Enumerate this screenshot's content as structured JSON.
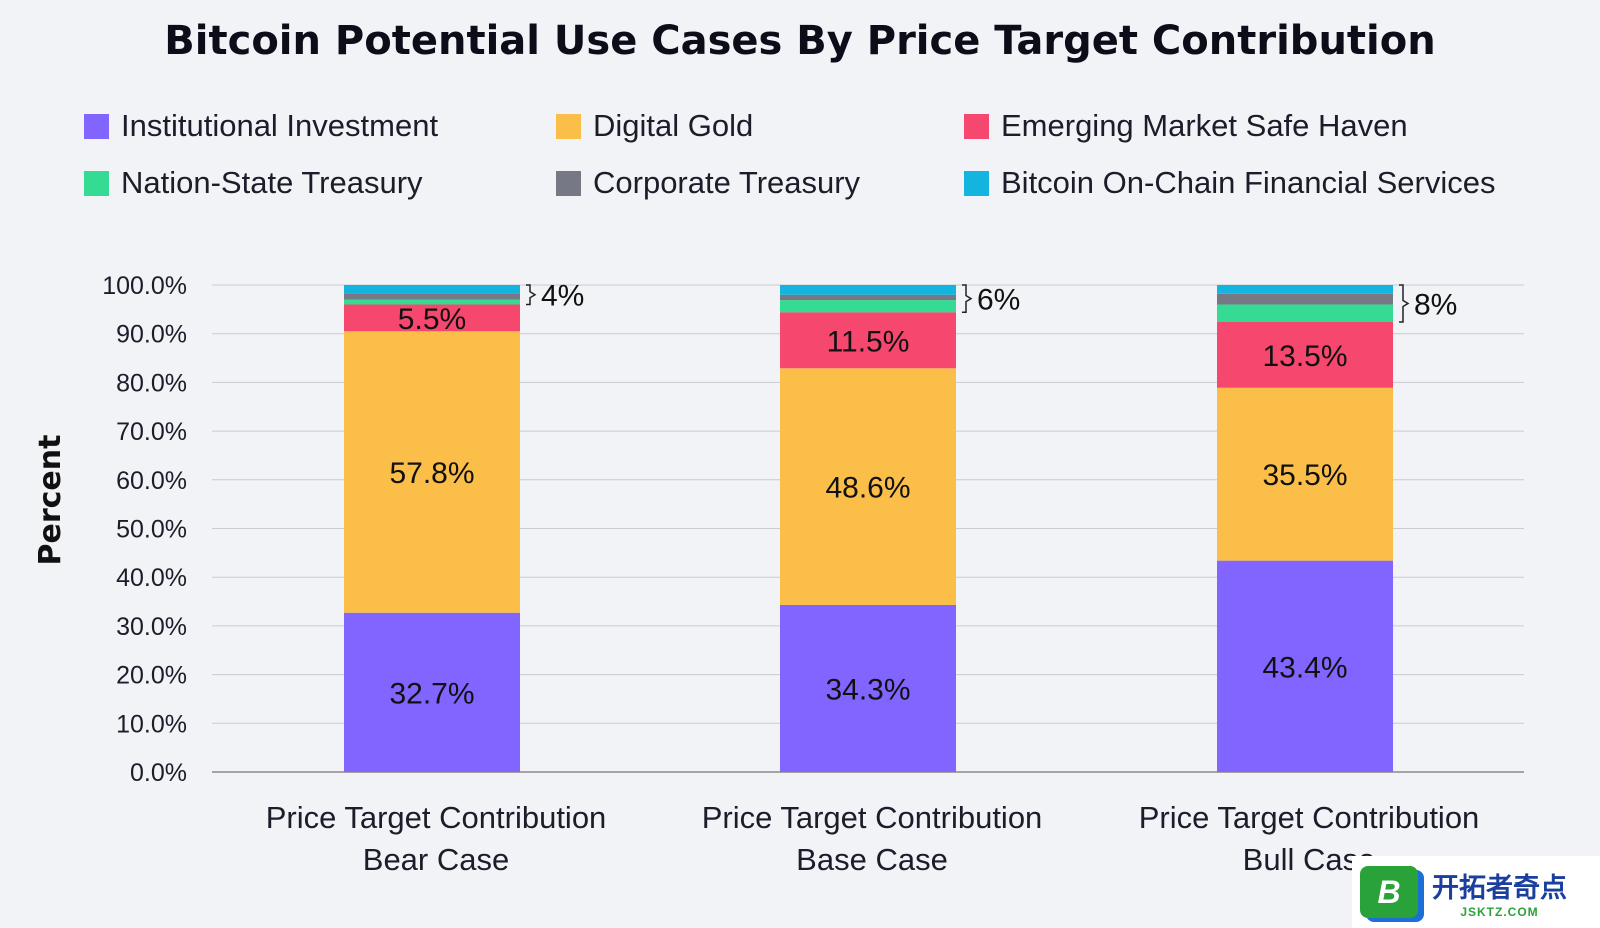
{
  "chart_data": {
    "type": "bar",
    "stacked": true,
    "title": "Bitcoin Potential Use Cases By Price Target Contribution",
    "ylabel": "Percent",
    "xlabel": "",
    "ylim": [
      0,
      100
    ],
    "yticks": [
      "0.0%",
      "10.0%",
      "20.0%",
      "30.0%",
      "40.0%",
      "50.0%",
      "60.0%",
      "70.0%",
      "80.0%",
      "90.0%",
      "100.0%"
    ],
    "categories": [
      [
        "Price Target Contribution",
        "Bear Case"
      ],
      [
        "Price Target Contribution",
        "Base Case"
      ],
      [
        "Price Target Contribution",
        "Bull Case"
      ]
    ],
    "series": [
      {
        "name": "Institutional Investment",
        "color": "#8264fe",
        "values": [
          32.7,
          34.3,
          43.4
        ],
        "labels": [
          "32.7%",
          "34.3%",
          "43.4%"
        ]
      },
      {
        "name": "Digital Gold",
        "color": "#fbbe48",
        "values": [
          57.8,
          48.6,
          35.5
        ],
        "labels": [
          "57.8%",
          "48.6%",
          "35.5%"
        ]
      },
      {
        "name": "Emerging Market Safe Haven",
        "color": "#f6476e",
        "values": [
          5.5,
          11.5,
          13.5
        ],
        "labels": [
          "5.5%",
          "11.5%",
          "13.5%"
        ]
      },
      {
        "name": "Nation-State Treasury",
        "color": "#35db92",
        "values": [
          1.0,
          2.5,
          3.6
        ],
        "labels": [
          "",
          "",
          ""
        ]
      },
      {
        "name": "Corporate Treasury",
        "color": "#767885",
        "values": [
          1.3,
          1.1,
          2.2
        ],
        "labels": [
          "",
          "",
          ""
        ]
      },
      {
        "name": "Bitcoin On-Chain Financial Services",
        "color": "#13b5e0",
        "values": [
          1.7,
          2.0,
          1.8
        ],
        "labels": [
          "",
          "",
          ""
        ]
      }
    ],
    "brackets": [
      "4%",
      "6%",
      "8%"
    ],
    "legend_position": "top",
    "grid": true
  },
  "watermark": {
    "logo_letter": "B",
    "text": "开拓者奇点",
    "subtext": "JSKTZ.COM"
  }
}
